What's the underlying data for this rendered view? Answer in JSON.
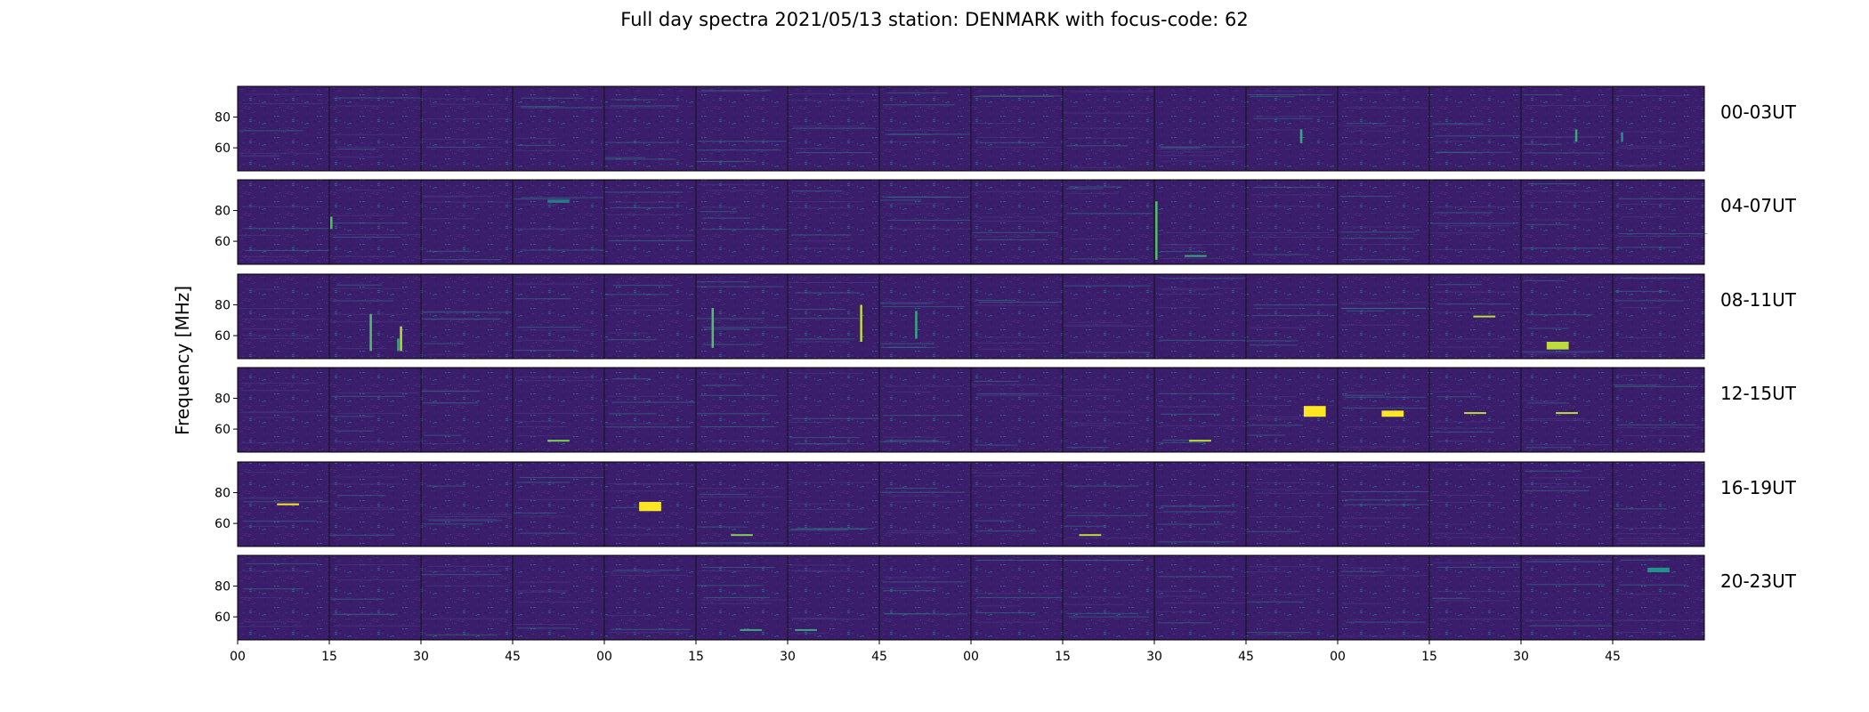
{
  "chart_data": {
    "type": "heatmap",
    "title": "Full day spectra 2021/05/13 station: DENMARK with focus-code: 62",
    "ylabel": "Frequency [MHz]",
    "xlabel": "",
    "y_ticks": [
      80,
      60
    ],
    "ylim": [
      45,
      100
    ],
    "x_tick_labels": [
      "00",
      "15",
      "30",
      "45",
      "00",
      "15",
      "30",
      "45",
      "00",
      "15",
      "30",
      "45",
      "00",
      "15",
      "30",
      "45"
    ],
    "panels_per_row": 16,
    "grid": false,
    "colormap": "viridis",
    "colors": {
      "background": "#3b1e6b",
      "low": "#440154",
      "mid": "#21918c",
      "high": "#fde725"
    },
    "rows": [
      {
        "label": "00-03UT",
        "bursts": [
          {
            "panel": 11,
            "t": 0.6,
            "f0": 63,
            "f1": 72,
            "intensity": 0.6,
            "kind": "vertical"
          },
          {
            "panel": 14,
            "t": 0.6,
            "f0": 64,
            "f1": 72,
            "intensity": 0.6,
            "kind": "vertical"
          },
          {
            "panel": 15,
            "t": 0.1,
            "f0": 64,
            "f1": 70,
            "intensity": 0.5,
            "kind": "vertical"
          }
        ]
      },
      {
        "label": "04-07UT",
        "bursts": [
          {
            "panel": 1,
            "t": 0.02,
            "f0": 68,
            "f1": 76,
            "intensity": 0.7,
            "kind": "vertical"
          },
          {
            "panel": 3,
            "t": 0.5,
            "f0": 85,
            "f1": 87,
            "intensity": 0.4,
            "kind": "horizontal"
          },
          {
            "panel": 10,
            "t": 0.02,
            "f0": 48,
            "f1": 86,
            "intensity": 0.7,
            "kind": "vertical"
          },
          {
            "panel": 10,
            "t": 0.45,
            "f0": 50,
            "f1": 51,
            "intensity": 0.6,
            "kind": "horizontal"
          }
        ]
      },
      {
        "label": "08-11UT",
        "bursts": [
          {
            "panel": 1,
            "t": 0.45,
            "f0": 50,
            "f1": 74,
            "intensity": 0.7,
            "kind": "vertical"
          },
          {
            "panel": 1,
            "t": 0.75,
            "f0": 50,
            "f1": 58,
            "intensity": 0.6,
            "kind": "vertical"
          },
          {
            "panel": 1,
            "t": 0.78,
            "f0": 50,
            "f1": 66,
            "intensity": 0.9,
            "kind": "vertical"
          },
          {
            "panel": 5,
            "t": 0.18,
            "f0": 52,
            "f1": 78,
            "intensity": 0.7,
            "kind": "vertical"
          },
          {
            "panel": 6,
            "t": 0.8,
            "f0": 56,
            "f1": 80,
            "intensity": 0.9,
            "kind": "vertical"
          },
          {
            "panel": 7,
            "t": 0.4,
            "f0": 58,
            "f1": 76,
            "intensity": 0.6,
            "kind": "vertical"
          },
          {
            "panel": 13,
            "t": 0.6,
            "f0": 72,
            "f1": 73,
            "intensity": 0.9,
            "kind": "horizontal"
          },
          {
            "panel": 14,
            "t": 0.4,
            "f0": 51,
            "f1": 56,
            "intensity": 0.9,
            "kind": "horizontal"
          }
        ]
      },
      {
        "label": "12-15UT",
        "bursts": [
          {
            "panel": 3,
            "t": 0.5,
            "f0": 52,
            "f1": 53,
            "intensity": 0.8,
            "kind": "horizontal"
          },
          {
            "panel": 10,
            "t": 0.5,
            "f0": 52,
            "f1": 53,
            "intensity": 0.9,
            "kind": "horizontal"
          },
          {
            "panel": 11,
            "t": 0.75,
            "f0": 68,
            "f1": 75,
            "intensity": 1.0,
            "kind": "horizontal"
          },
          {
            "panel": 12,
            "t": 0.6,
            "f0": 68,
            "f1": 72,
            "intensity": 1.0,
            "kind": "horizontal"
          },
          {
            "panel": 13,
            "t": 0.5,
            "f0": 70,
            "f1": 71,
            "intensity": 0.9,
            "kind": "horizontal"
          },
          {
            "panel": 14,
            "t": 0.5,
            "f0": 70,
            "f1": 71,
            "intensity": 0.9,
            "kind": "horizontal"
          }
        ]
      },
      {
        "label": "16-19UT",
        "bursts": [
          {
            "panel": 0,
            "t": 0.55,
            "f0": 72,
            "f1": 73,
            "intensity": 1.0,
            "kind": "horizontal"
          },
          {
            "panel": 4,
            "t": 0.5,
            "f0": 68,
            "f1": 74,
            "intensity": 1.0,
            "kind": "horizontal"
          },
          {
            "panel": 5,
            "t": 0.5,
            "f0": 52,
            "f1": 53,
            "intensity": 0.8,
            "kind": "horizontal"
          },
          {
            "panel": 9,
            "t": 0.3,
            "f0": 52,
            "f1": 53,
            "intensity": 0.9,
            "kind": "horizontal"
          }
        ]
      },
      {
        "label": "20-23UT",
        "bursts": [
          {
            "panel": 5,
            "t": 0.6,
            "f0": 51,
            "f1": 52,
            "intensity": 0.6,
            "kind": "horizontal"
          },
          {
            "panel": 6,
            "t": 0.2,
            "f0": 51,
            "f1": 52,
            "intensity": 0.6,
            "kind": "horizontal"
          },
          {
            "panel": 15,
            "t": 0.5,
            "f0": 89,
            "f1": 92,
            "intensity": 0.5,
            "kind": "horizontal"
          }
        ]
      }
    ]
  }
}
